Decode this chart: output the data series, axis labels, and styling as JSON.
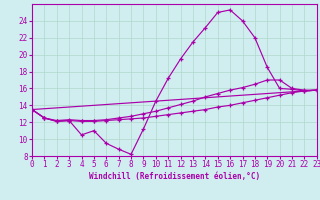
{
  "xlabel": "Windchill (Refroidissement éolien,°C)",
  "background_color": "#d0eef0",
  "grid_color": "#b0d8cc",
  "line_color": "#aa00aa",
  "spine_color": "#aa00aa",
  "xlim": [
    0,
    23
  ],
  "ylim": [
    8,
    26
  ],
  "yticks": [
    8,
    10,
    12,
    14,
    16,
    18,
    20,
    22,
    24
  ],
  "xticks": [
    0,
    1,
    2,
    3,
    4,
    5,
    6,
    7,
    8,
    9,
    10,
    11,
    12,
    13,
    14,
    15,
    16,
    17,
    18,
    19,
    20,
    21,
    22,
    23
  ],
  "series": [
    {
      "x": [
        0,
        1,
        2,
        3,
        4,
        5,
        6,
        7,
        8,
        9,
        10,
        11,
        12,
        13,
        14,
        15,
        16,
        17,
        18,
        19,
        20,
        21,
        22,
        23
      ],
      "y": [
        13.5,
        12.5,
        12.1,
        12.2,
        10.5,
        11.0,
        9.5,
        8.8,
        8.2,
        11.2,
        14.5,
        17.2,
        19.5,
        21.5,
        23.2,
        25.0,
        25.3,
        24.0,
        22.0,
        18.5,
        16.0,
        15.9,
        15.7,
        15.8
      ]
    },
    {
      "x": [
        0,
        1,
        2,
        3,
        4,
        5,
        6,
        7,
        8,
        9,
        10,
        11,
        12,
        13,
        14,
        15,
        16,
        17,
        18,
        19,
        20,
        21,
        22,
        23
      ],
      "y": [
        13.5,
        12.5,
        12.2,
        12.3,
        12.2,
        12.2,
        12.3,
        12.5,
        12.7,
        13.0,
        13.3,
        13.7,
        14.1,
        14.5,
        15.0,
        15.4,
        15.8,
        16.1,
        16.5,
        17.0,
        17.0,
        16.0,
        15.8,
        15.8
      ]
    },
    {
      "x": [
        0,
        1,
        2,
        3,
        4,
        5,
        6,
        7,
        8,
        9,
        10,
        11,
        12,
        13,
        14,
        15,
        16,
        17,
        18,
        19,
        20,
        21,
        22,
        23
      ],
      "y": [
        13.5,
        12.5,
        12.1,
        12.2,
        12.1,
        12.1,
        12.2,
        12.3,
        12.4,
        12.5,
        12.7,
        12.9,
        13.1,
        13.3,
        13.5,
        13.8,
        14.0,
        14.3,
        14.6,
        14.9,
        15.2,
        15.5,
        15.7,
        15.8
      ]
    },
    {
      "x": [
        0,
        23
      ],
      "y": [
        13.5,
        15.8
      ]
    }
  ],
  "lw": 0.85,
  "ms": 3.5,
  "mew": 0.9,
  "xlabel_fontsize": 5.5,
  "tick_fontsize": 5.5
}
